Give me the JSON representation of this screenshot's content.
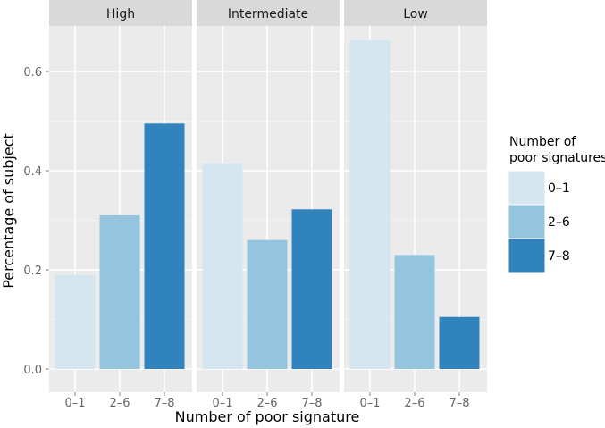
{
  "chart_data": {
    "type": "bar",
    "facet_by": "group",
    "facets": [
      {
        "name": "High",
        "values": [
          0.19,
          0.31,
          0.495
        ]
      },
      {
        "name": "Intermediate",
        "values": [
          0.415,
          0.26,
          0.322
        ]
      },
      {
        "name": "Low",
        "values": [
          0.663,
          0.23,
          0.105
        ]
      }
    ],
    "categories": [
      "0–1",
      "2–6",
      "7–8"
    ],
    "xlabel": "Number of poor signature",
    "ylabel": "Percentage of subject",
    "ylim": [
      0,
      0.7
    ],
    "yticks": [
      "0.0",
      "0.2",
      "0.4",
      "0.6"
    ],
    "yticks_values": [
      0,
      0.2,
      0.4,
      0.6
    ],
    "grid": true,
    "legend": {
      "title_line1": "Number of",
      "title_line2": "poor signatures",
      "placement": "right",
      "entries": [
        "0–1",
        "2–6",
        "7–8"
      ]
    },
    "colors": [
      "#d6e6f1",
      "#94c4de",
      "#3183bd"
    ],
    "panel_background": "#ebebeb",
    "strip_background": "#d9d9d9"
  }
}
